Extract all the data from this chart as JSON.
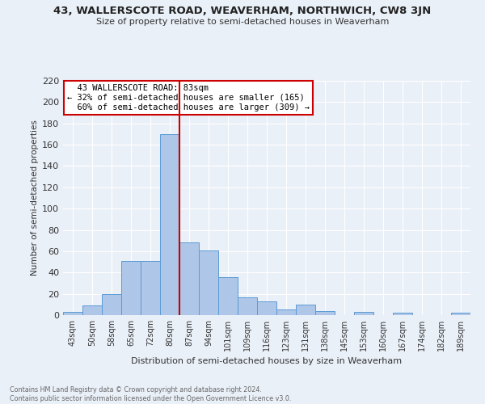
{
  "title1": "43, WALLERSCOTE ROAD, WEAVERHAM, NORTHWICH, CW8 3JN",
  "title2": "Size of property relative to semi-detached houses in Weaverham",
  "xlabel": "Distribution of semi-detached houses by size in Weaverham",
  "ylabel": "Number of semi-detached properties",
  "footer": "Contains HM Land Registry data © Crown copyright and database right 2024.\nContains public sector information licensed under the Open Government Licence v3.0.",
  "categories": [
    "43sqm",
    "50sqm",
    "58sqm",
    "65sqm",
    "72sqm",
    "80sqm",
    "87sqm",
    "94sqm",
    "101sqm",
    "109sqm",
    "116sqm",
    "123sqm",
    "131sqm",
    "138sqm",
    "145sqm",
    "153sqm",
    "160sqm",
    "167sqm",
    "174sqm",
    "182sqm",
    "189sqm"
  ],
  "values": [
    3,
    9,
    20,
    51,
    51,
    170,
    68,
    61,
    36,
    17,
    13,
    5,
    10,
    4,
    0,
    3,
    0,
    2,
    0,
    0,
    2
  ],
  "bar_color": "#aec6e8",
  "bar_edge_color": "#5b9bd5",
  "highlight_label": "43 WALLERSCOTE ROAD: 83sqm",
  "pct_smaller": "32% of semi-detached houses are smaller (165)",
  "pct_larger": "60% of semi-detached houses are larger (309)",
  "ylim": [
    0,
    220
  ],
  "yticks": [
    0,
    20,
    40,
    60,
    80,
    100,
    120,
    140,
    160,
    180,
    200,
    220
  ],
  "bg_color": "#eaf0f8",
  "grid_color": "#ffffff",
  "annotation_box_color": "#ffffff",
  "annotation_box_edge": "#cc0000",
  "vline_color": "#cc0000"
}
